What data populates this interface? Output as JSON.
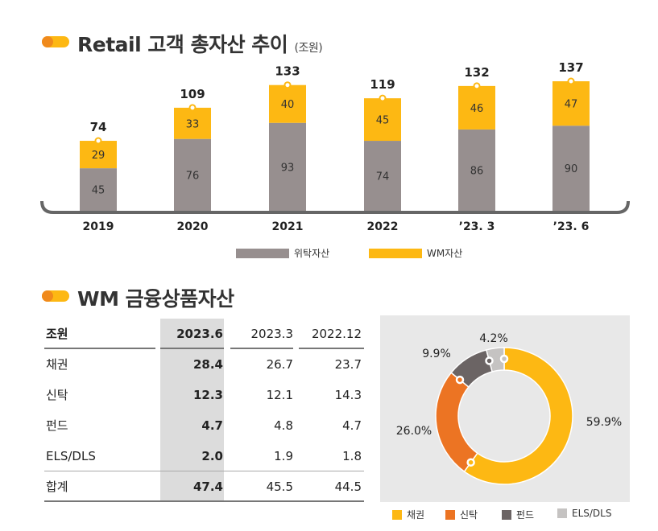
{
  "section1": {
    "title": "Retail 고객 총자산 추이",
    "unit": "(조원)"
  },
  "chart_data": [
    {
      "type": "bar",
      "stacked": true,
      "categories": [
        "2019",
        "2020",
        "2021",
        "2022",
        "’23. 3",
        "’23. 6"
      ],
      "series": [
        {
          "name": "위탁자산",
          "values": [
            45,
            76,
            93,
            74,
            86,
            90
          ],
          "color": "#978f8f"
        },
        {
          "name": "WM자산",
          "values": [
            29,
            33,
            40,
            45,
            46,
            47
          ],
          "color": "#fdb813"
        }
      ],
      "totals": [
        74,
        109,
        133,
        119,
        132,
        137
      ],
      "legend": "bottom"
    },
    {
      "type": "pie",
      "donut": true,
      "labels": [
        "채권",
        "신탁",
        "펀드",
        "ELS/DLS"
      ],
      "values": [
        59.9,
        26.0,
        9.9,
        4.2
      ],
      "value_labels": [
        "59.9%",
        "26.0%",
        "9.9%",
        "4.2%"
      ],
      "colors": [
        "#fdb813",
        "#ec7423",
        "#6b6464",
        "#c5c3c2"
      ],
      "legend": "bottom"
    }
  ],
  "section2": {
    "title": "WM 금융상품자산"
  },
  "table": {
    "headers": [
      "조원",
      "2023.6",
      "2023.3",
      "2022.12"
    ],
    "rows": [
      [
        "채권",
        "28.4",
        "26.7",
        "23.7"
      ],
      [
        "신탁",
        "12.3",
        "12.1",
        "14.3"
      ],
      [
        "펀드",
        "4.7",
        "4.8",
        "4.7"
      ],
      [
        "ELS/DLS",
        "2.0",
        "1.9",
        "1.8"
      ],
      [
        "합계",
        "47.4",
        "45.5",
        "44.5"
      ]
    ]
  }
}
